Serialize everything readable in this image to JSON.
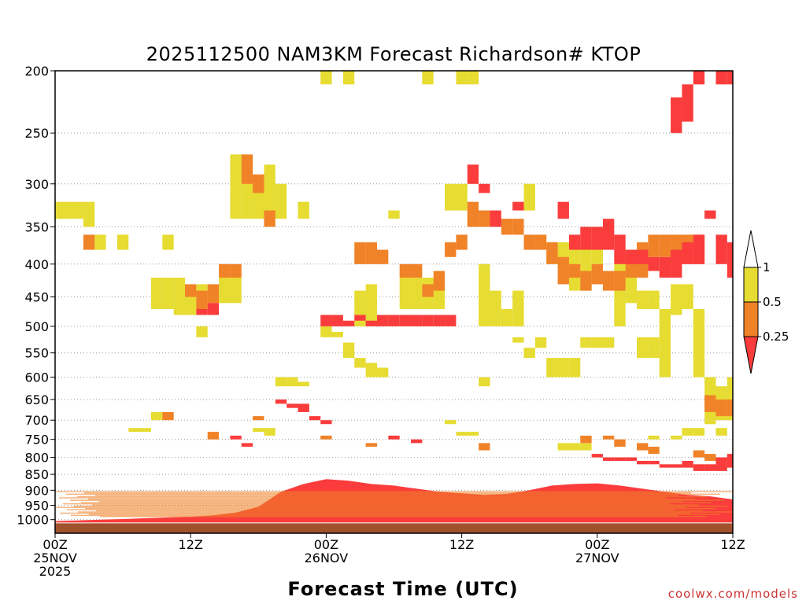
{
  "chart_data": {
    "type": "heatmap",
    "title": "2025112500 NAM3KM Forecast Richardson# KTOP",
    "xlabel": "Forecast Time (UTC)",
    "ylabel": "",
    "credit": "coolwx.com/models",
    "x_range_hours": [
      0,
      60
    ],
    "y_range_hpa": [
      200,
      1050
    ],
    "y_ticks": [
      200,
      250,
      300,
      350,
      400,
      450,
      500,
      550,
      600,
      650,
      700,
      750,
      800,
      850,
      900,
      950,
      1000
    ],
    "x_ticks": [
      {
        "hour": 0,
        "lines": [
          "00Z",
          "25NOV",
          "2025"
        ]
      },
      {
        "hour": 12,
        "lines": [
          "12Z"
        ]
      },
      {
        "hour": 24,
        "lines": [
          "00Z",
          "26NOV"
        ]
      },
      {
        "hour": 36,
        "lines": [
          "12Z"
        ]
      },
      {
        "hour": 48,
        "lines": [
          "00Z",
          "27NOV"
        ]
      },
      {
        "hour": 60,
        "lines": [
          "12Z"
        ]
      }
    ],
    "legend": {
      "labels": [
        "1",
        "0.5",
        "0.25"
      ],
      "bins": [
        {
          "range": "> 1",
          "color": "#ffffff"
        },
        {
          "range": "0.5 - 1",
          "color": "#e6dc32"
        },
        {
          "range": "0.25 - 0.5",
          "color": "#f08228"
        },
        {
          "range": "< 0.25",
          "color": "#fa3c3c"
        }
      ]
    },
    "ground_color": "#a0522d",
    "surface_pressure_hpa": 1012,
    "series": [
      {
        "name": "Ri 0.5-1 (yellow)",
        "color": "#e6dc32",
        "cells": [
          [
            0,
            320,
            340
          ],
          [
            1,
            320,
            340
          ],
          [
            2,
            320,
            340
          ],
          [
            3,
            320,
            350
          ],
          [
            4,
            360,
            380
          ],
          [
            6,
            360,
            380
          ],
          [
            10,
            360,
            380
          ],
          [
            9,
            420,
            470
          ],
          [
            10,
            420,
            470
          ],
          [
            11,
            420,
            480
          ],
          [
            12,
            440,
            480
          ],
          [
            13,
            430,
            470
          ],
          [
            15,
            420,
            460
          ],
          [
            16,
            420,
            460
          ],
          [
            16,
            270,
            340
          ],
          [
            17,
            270,
            340
          ],
          [
            18,
            300,
            340
          ],
          [
            19,
            280,
            340
          ],
          [
            20,
            300,
            340
          ],
          [
            22,
            320,
            340
          ],
          [
            24,
            200,
            210
          ],
          [
            26,
            200,
            210
          ],
          [
            27,
            440,
            500
          ],
          [
            28,
            430,
            500
          ],
          [
            29,
            480,
            500
          ],
          [
            30,
            330,
            340
          ],
          [
            31,
            420,
            470
          ],
          [
            32,
            420,
            470
          ],
          [
            33,
            420,
            470
          ],
          [
            34,
            420,
            470
          ],
          [
            35,
            300,
            330
          ],
          [
            36,
            300,
            330
          ],
          [
            37,
            330,
            350
          ],
          [
            38,
            400,
            500
          ],
          [
            39,
            440,
            500
          ],
          [
            40,
            470,
            500
          ],
          [
            41,
            440,
            500
          ],
          [
            42,
            300,
            330
          ],
          [
            44,
            370,
            400
          ],
          [
            45,
            370,
            400
          ],
          [
            46,
            370,
            440
          ],
          [
            47,
            370,
            440
          ],
          [
            48,
            370,
            400
          ],
          [
            50,
            390,
            500
          ],
          [
            51,
            400,
            460
          ],
          [
            52,
            440,
            470
          ],
          [
            53,
            440,
            470
          ],
          [
            54,
            470,
            600
          ],
          [
            55,
            430,
            480
          ],
          [
            56,
            430,
            470
          ],
          [
            57,
            470,
            600
          ],
          [
            58,
            600,
            700
          ],
          [
            59,
            620,
            700
          ],
          [
            60,
            600,
            700
          ],
          [
            36,
            200,
            210
          ],
          [
            37,
            200,
            210
          ],
          [
            33,
            200,
            210
          ],
          [
            26,
            530,
            560
          ],
          [
            27,
            560,
            580
          ],
          [
            28,
            570,
            600
          ],
          [
            29,
            580,
            600
          ],
          [
            24,
            500,
            520
          ],
          [
            25,
            510,
            520
          ],
          [
            20,
            600,
            620
          ],
          [
            21,
            600,
            620
          ],
          [
            22,
            610,
            620
          ],
          [
            18,
            720,
            730
          ],
          [
            19,
            720,
            740
          ],
          [
            13,
            500,
            520
          ],
          [
            7,
            720,
            730
          ],
          [
            8,
            720,
            730
          ],
          [
            9,
            680,
            700
          ],
          [
            44,
            560,
            600
          ],
          [
            45,
            560,
            600
          ],
          [
            46,
            560,
            600
          ],
          [
            41,
            520,
            530
          ],
          [
            42,
            540,
            560
          ],
          [
            43,
            520,
            540
          ],
          [
            47,
            520,
            540
          ],
          [
            48,
            520,
            540
          ],
          [
            49,
            520,
            540
          ],
          [
            52,
            520,
            560
          ],
          [
            53,
            520,
            560
          ],
          [
            36,
            730,
            740
          ],
          [
            37,
            730,
            740
          ],
          [
            35,
            700,
            710
          ],
          [
            56,
            720,
            740
          ],
          [
            57,
            720,
            740
          ],
          [
            58,
            700,
            710
          ],
          [
            59,
            720,
            740
          ],
          [
            45,
            760,
            780
          ],
          [
            46,
            760,
            780
          ],
          [
            47,
            760,
            780
          ],
          [
            53,
            740,
            750
          ],
          [
            55,
            740,
            750
          ],
          [
            38,
            600,
            620
          ]
        ]
      },
      {
        "name": "Ri 0.25-0.5 (orange)",
        "color": "#f08228",
        "cells": [
          [
            3,
            360,
            380
          ],
          [
            12,
            430,
            450
          ],
          [
            13,
            440,
            470
          ],
          [
            14,
            430,
            460
          ],
          [
            15,
            400,
            420
          ],
          [
            16,
            400,
            420
          ],
          [
            17,
            270,
            300
          ],
          [
            18,
            290,
            310
          ],
          [
            19,
            330,
            350
          ],
          [
            27,
            370,
            400
          ],
          [
            28,
            370,
            400
          ],
          [
            29,
            380,
            400
          ],
          [
            31,
            400,
            420
          ],
          [
            32,
            400,
            420
          ],
          [
            33,
            430,
            450
          ],
          [
            34,
            410,
            440
          ],
          [
            35,
            370,
            390
          ],
          [
            36,
            360,
            380
          ],
          [
            37,
            320,
            350
          ],
          [
            38,
            330,
            350
          ],
          [
            40,
            340,
            360
          ],
          [
            41,
            340,
            360
          ],
          [
            42,
            360,
            380
          ],
          [
            43,
            360,
            380
          ],
          [
            44,
            370,
            400
          ],
          [
            45,
            390,
            430
          ],
          [
            46,
            400,
            420
          ],
          [
            47,
            410,
            440
          ],
          [
            48,
            400,
            430
          ],
          [
            49,
            410,
            440
          ],
          [
            50,
            410,
            440
          ],
          [
            51,
            380,
            420
          ],
          [
            52,
            370,
            420
          ],
          [
            53,
            360,
            390
          ],
          [
            54,
            360,
            390
          ],
          [
            55,
            360,
            400
          ],
          [
            56,
            360,
            400
          ],
          [
            57,
            360,
            400
          ],
          [
            58,
            640,
            680
          ],
          [
            59,
            650,
            690
          ],
          [
            60,
            650,
            690
          ],
          [
            14,
            730,
            750
          ],
          [
            18,
            690,
            700
          ],
          [
            10,
            680,
            700
          ],
          [
            24,
            740,
            750
          ],
          [
            28,
            760,
            770
          ],
          [
            38,
            760,
            780
          ],
          [
            47,
            740,
            760
          ],
          [
            49,
            740,
            750
          ],
          [
            50,
            750,
            770
          ],
          [
            52,
            760,
            780
          ],
          [
            53,
            770,
            790
          ],
          [
            57,
            780,
            800
          ],
          [
            58,
            790,
            810
          ],
          [
            60,
            800,
            820
          ]
        ]
      },
      {
        "name": "Ri < 0.25 (red)",
        "color": "#fa3c3c",
        "cells": [
          [
            13,
            470,
            480
          ],
          [
            14,
            460,
            480
          ],
          [
            24,
            480,
            500
          ],
          [
            25,
            480,
            500
          ],
          [
            26,
            490,
            500
          ],
          [
            27,
            480,
            490
          ],
          [
            28,
            490,
            500
          ],
          [
            29,
            480,
            500
          ],
          [
            30,
            480,
            500
          ],
          [
            31,
            480,
            500
          ],
          [
            32,
            480,
            500
          ],
          [
            33,
            480,
            500
          ],
          [
            34,
            480,
            500
          ],
          [
            35,
            480,
            500
          ],
          [
            37,
            280,
            300
          ],
          [
            38,
            300,
            310
          ],
          [
            39,
            330,
            350
          ],
          [
            41,
            320,
            330
          ],
          [
            45,
            320,
            340
          ],
          [
            46,
            360,
            380
          ],
          [
            47,
            350,
            380
          ],
          [
            48,
            350,
            380
          ],
          [
            49,
            340,
            380
          ],
          [
            50,
            360,
            400
          ],
          [
            51,
            380,
            400
          ],
          [
            52,
            380,
            400
          ],
          [
            53,
            390,
            410
          ],
          [
            54,
            390,
            420
          ],
          [
            55,
            380,
            420
          ],
          [
            56,
            370,
            400
          ],
          [
            57,
            360,
            400
          ],
          [
            58,
            330,
            340
          ],
          [
            59,
            360,
            400
          ],
          [
            60,
            370,
            420
          ],
          [
            20,
            650,
            660
          ],
          [
            21,
            660,
            670
          ],
          [
            22,
            660,
            680
          ],
          [
            23,
            690,
            700
          ],
          [
            24,
            700,
            710
          ],
          [
            30,
            740,
            750
          ],
          [
            32,
            750,
            760
          ],
          [
            55,
            220,
            250
          ],
          [
            56,
            210,
            240
          ],
          [
            57,
            200,
            210
          ],
          [
            59,
            200,
            210
          ],
          [
            60,
            200,
            210
          ],
          [
            16,
            740,
            750
          ],
          [
            17,
            760,
            770
          ],
          [
            48,
            790,
            800
          ],
          [
            49,
            800,
            810
          ],
          [
            50,
            800,
            810
          ],
          [
            51,
            800,
            810
          ],
          [
            52,
            810,
            820
          ],
          [
            53,
            810,
            820
          ],
          [
            54,
            820,
            830
          ],
          [
            55,
            820,
            830
          ],
          [
            56,
            810,
            830
          ],
          [
            57,
            820,
            840
          ],
          [
            58,
            820,
            840
          ],
          [
            59,
            800,
            840
          ],
          [
            60,
            790,
            830
          ]
        ]
      }
    ],
    "red_layer_top_hpa": [
      [
        0,
        1005
      ],
      [
        2,
        1003
      ],
      [
        4,
        1000
      ],
      [
        6,
        998
      ],
      [
        8,
        995
      ],
      [
        10,
        992
      ],
      [
        12,
        990
      ],
      [
        14,
        985
      ],
      [
        16,
        975
      ],
      [
        18,
        955
      ],
      [
        19,
        930
      ],
      [
        20,
        905
      ],
      [
        22,
        880
      ],
      [
        24,
        865
      ],
      [
        26,
        870
      ],
      [
        28,
        880
      ],
      [
        30,
        885
      ],
      [
        32,
        895
      ],
      [
        34,
        905
      ],
      [
        36,
        910
      ],
      [
        38,
        915
      ],
      [
        40,
        912
      ],
      [
        42,
        900
      ],
      [
        44,
        885
      ],
      [
        46,
        880
      ],
      [
        48,
        878
      ],
      [
        50,
        885
      ],
      [
        52,
        895
      ],
      [
        54,
        905
      ],
      [
        56,
        915
      ],
      [
        58,
        920
      ],
      [
        60,
        930
      ]
    ]
  }
}
